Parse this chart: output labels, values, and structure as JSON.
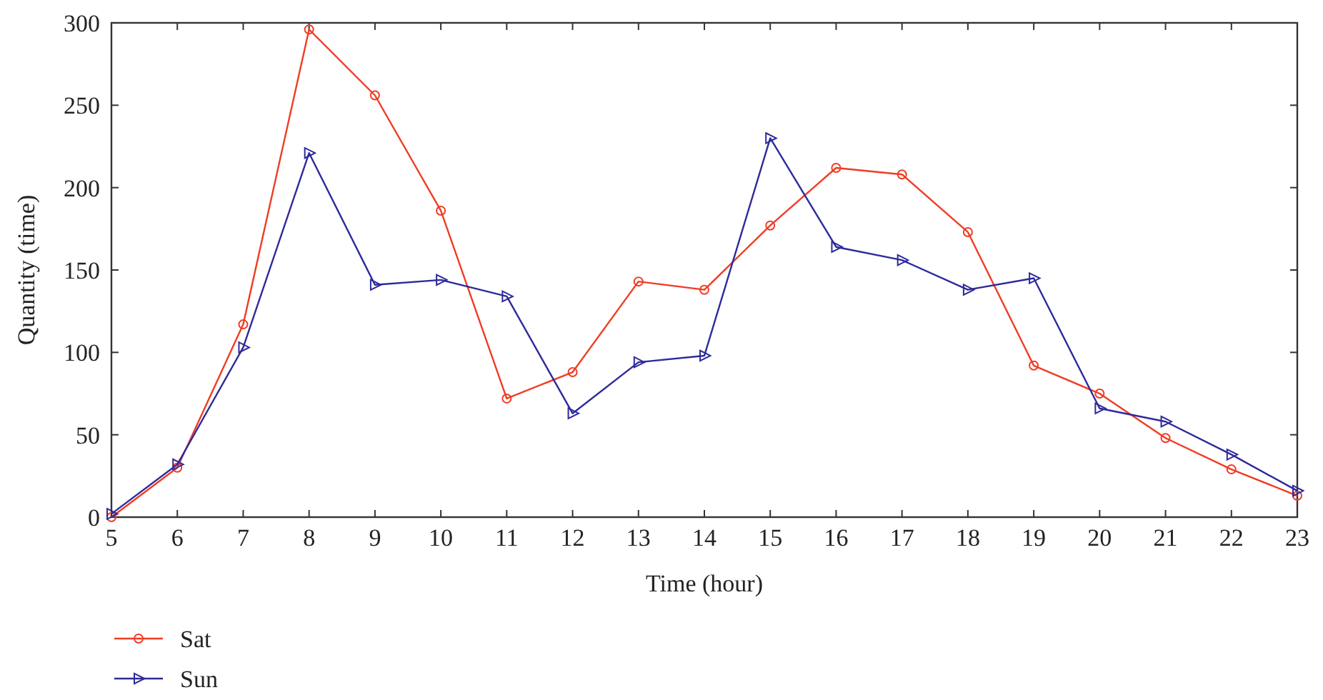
{
  "chart_data": {
    "type": "line",
    "xlabel": "Time (hour)",
    "ylabel": "Quantity (time)",
    "x": [
      5,
      6,
      7,
      8,
      9,
      10,
      11,
      12,
      13,
      14,
      15,
      16,
      17,
      18,
      19,
      20,
      21,
      22,
      23
    ],
    "xlim": [
      5,
      23
    ],
    "xticks": [
      5,
      6,
      7,
      8,
      9,
      10,
      11,
      12,
      13,
      14,
      15,
      16,
      17,
      18,
      19,
      20,
      21,
      22,
      23
    ],
    "ylim": [
      0,
      300
    ],
    "yticks": [
      0,
      50,
      100,
      150,
      200,
      250,
      300
    ],
    "grid": false,
    "legend": "bottom left",
    "line_style": "solid",
    "series": [
      {
        "name": "Sat",
        "color": "#f03c24",
        "marker": "circle",
        "values": [
          0,
          30,
          117,
          296,
          256,
          186,
          72,
          88,
          143,
          138,
          177,
          212,
          208,
          173,
          92,
          75,
          48,
          29,
          13
        ]
      },
      {
        "name": "Sun",
        "color": "#2e2a9a",
        "marker": "triangle",
        "values": [
          2,
          32,
          103,
          221,
          141,
          144,
          134,
          63,
          94,
          98,
          230,
          164,
          156,
          138,
          145,
          66,
          58,
          38,
          16
        ]
      }
    ]
  }
}
